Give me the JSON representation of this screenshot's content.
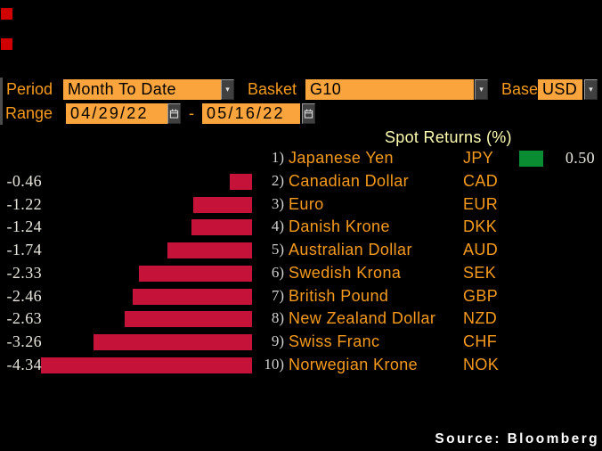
{
  "toolbar": {
    "period_label": "Period",
    "period_value": "Month To Date",
    "basket_label": "Basket",
    "basket_value": "G10",
    "base_label": "Base",
    "base_value": "USD",
    "range_label": "Range",
    "range_start": "04/29/22",
    "range_separator": "-",
    "range_end": "05/16/22"
  },
  "icons": {
    "dropdown_arrow": "▾"
  },
  "colors": {
    "accent_orange_text": "#f79a1d",
    "field_background": "#f9a43c",
    "title_yellow": "#ffffb2",
    "value_text": "#e9e5dc",
    "bar_negative": "#c51239",
    "bar_positive": "#0a8c32",
    "indicator_red": "#d10000"
  },
  "chart_data": {
    "type": "bar",
    "orientation": "horizontal",
    "title": "Spot Returns (%)",
    "xlabel": "",
    "ylabel": "",
    "legend": false,
    "ranks": [
      "1)",
      "2)",
      "3)",
      "4)",
      "5)",
      "6)",
      "7)",
      "8)",
      "9)",
      "10)"
    ],
    "categories": [
      "Japanese Yen",
      "Canadian Dollar",
      "Euro",
      "Danish Krone",
      "Australian Dollar",
      "Swedish Krona",
      "British Pound",
      "New Zealand Dollar",
      "Swiss Franc",
      "Norwegian Krone"
    ],
    "codes": [
      "JPY",
      "CAD",
      "EUR",
      "DKK",
      "AUD",
      "SEK",
      "GBP",
      "NZD",
      "CHF",
      "NOK"
    ],
    "values": [
      0.5,
      -0.46,
      -1.22,
      -1.24,
      -1.74,
      -2.33,
      -2.46,
      -2.63,
      -3.26,
      -4.34
    ],
    "value_labels": [
      "0.50",
      "-0.46",
      "-1.22",
      "-1.24",
      "-1.74",
      "-2.33",
      "-2.46",
      "-2.63",
      "-3.26",
      "-4.34"
    ],
    "positive_color": "#0a8c32",
    "negative_color": "#c51239"
  },
  "footer": {
    "source": "Source: Bloomberg"
  }
}
